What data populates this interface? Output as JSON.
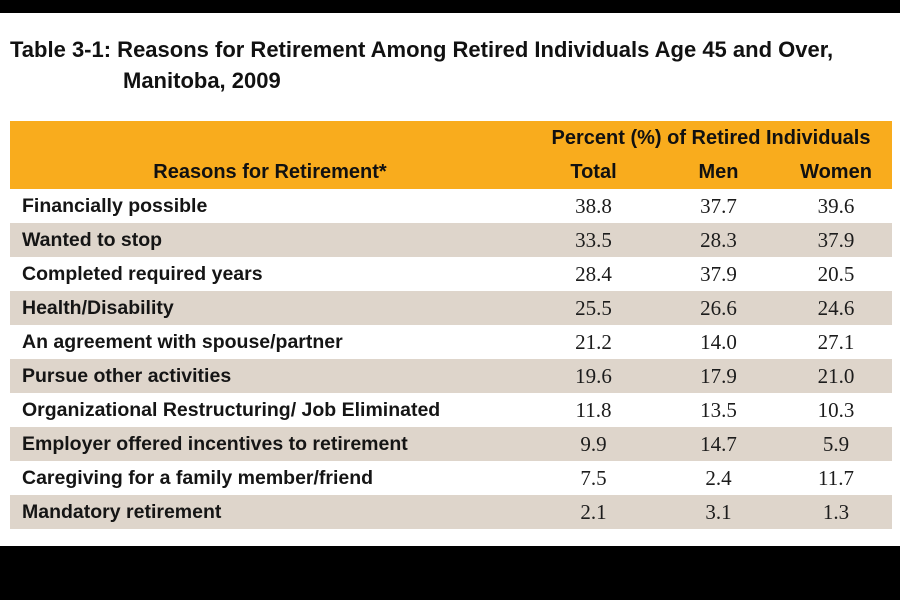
{
  "title": {
    "line1": "Table 3-1: Reasons for Retirement Among Retired Individuals Age 45 and Over,",
    "line2": "Manitoba, 2009"
  },
  "table": {
    "group_header": "Percent (%) of Retired Individuals",
    "columns": {
      "reasons": "Reasons for Retirement*",
      "total": "Total",
      "men": "Men",
      "women": "Women"
    },
    "rows": [
      {
        "label": "Financially possible",
        "total": "38.8",
        "men": "37.7",
        "women": "39.6"
      },
      {
        "label": "Wanted to stop",
        "total": "33.5",
        "men": "28.3",
        "women": "37.9"
      },
      {
        "label": "Completed required years",
        "total": "28.4",
        "men": "37.9",
        "women": "20.5"
      },
      {
        "label": "Health/Disability",
        "total": "25.5",
        "men": "26.6",
        "women": "24.6"
      },
      {
        "label": "An agreement with spouse/partner",
        "total": "21.2",
        "men": "14.0",
        "women": "27.1"
      },
      {
        "label": "Pursue other activities",
        "total": "19.6",
        "men": "17.9",
        "women": "21.0"
      },
      {
        "label": "Organizational Restructuring/ Job Eliminated",
        "total": "11.8",
        "men": "13.5",
        "women": "10.3"
      },
      {
        "label": "Employer offered incentives to retirement",
        "total": "9.9",
        "men": "14.7",
        "women": "5.9"
      },
      {
        "label": "Caregiving for a family member/friend",
        "total": "7.5",
        "men": "2.4",
        "women": "11.7"
      },
      {
        "label": "Mandatory retirement",
        "total": "2.1",
        "men": "3.1",
        "women": "1.3"
      }
    ]
  },
  "colors": {
    "header_bg": "#F9AC1D",
    "row_alt_bg": "#DED5CB",
    "bar": "#000000"
  }
}
